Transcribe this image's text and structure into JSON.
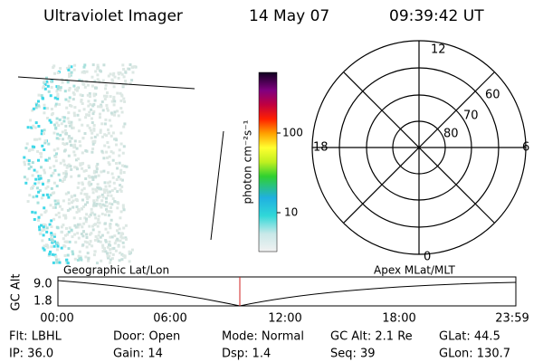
{
  "header": {
    "title": "Ultraviolet Imager",
    "date": "14 May 07",
    "time": "09:39:42 UT"
  },
  "colorbar": {
    "label": "photon cm⁻²s⁻¹",
    "ticks": [
      "100",
      "10"
    ]
  },
  "polar": {
    "mlt_labels": [
      "12",
      "18",
      "6",
      "0"
    ],
    "mlat_labels": [
      "60",
      "70",
      "80"
    ]
  },
  "orbit": {
    "ylabel": "GC Alt",
    "yticks": [
      "9.0",
      "1.8"
    ],
    "left_label": "Geographic Lat/Lon",
    "right_label": "Apex MLat/MLT",
    "xticks": [
      "00:00",
      "06:00",
      "12:00",
      "18:00",
      "23:59"
    ]
  },
  "status": {
    "rows": [
      [
        "Flt: LBHL",
        "Door: Open",
        "Mode: Normal",
        "GC Alt: 2.1 Re",
        "GLat:  44.5"
      ],
      [
        "IP: 36.0",
        "Gain: 14",
        "Dsp:    1.4",
        "Seq: 39",
        "GLon: 130.7"
      ]
    ]
  }
}
